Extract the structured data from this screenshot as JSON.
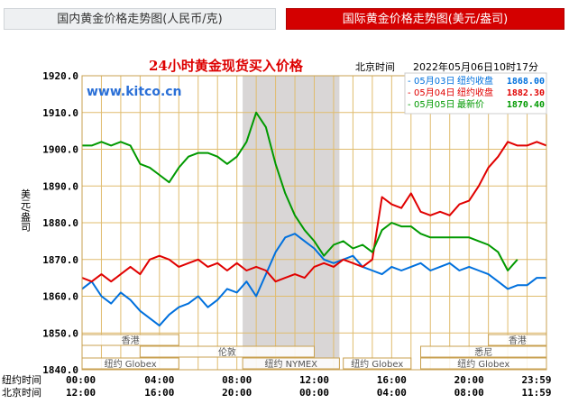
{
  "tabs": {
    "domestic": "国内黄金价格走势图(人民币/克)",
    "international": "国际黄金价格走势图(美元/盎司)"
  },
  "colors": {
    "day1": "#0070dd",
    "day2": "#e00000",
    "day3": "#009900",
    "title": "#dd0000"
  },
  "chart_data": {
    "type": "line",
    "title": "24小时黄金现货买入价格",
    "timezone_label": "北京时间",
    "timestamp": "2022年05月06日10时17分",
    "watermark": "www.kitco.cn",
    "ylabel": "美元/盎司",
    "ylim": [
      1840,
      1920
    ],
    "yticks": [
      "1840.0",
      "1850.0",
      "1860.0",
      "1870.0",
      "1880.0",
      "1890.0",
      "1900.0",
      "1910.0",
      "1920.0"
    ],
    "xlim": [
      0,
      24
    ],
    "x_axis_rows": [
      {
        "label": "纽约时间",
        "ticks": [
          "00:00",
          "04:00",
          "08:00",
          "12:00",
          "16:00",
          "20:00",
          "23:59"
        ]
      },
      {
        "label": "北京时间",
        "ticks": [
          "12:00",
          "16:00",
          "20:00",
          "00:00",
          "04:00",
          "08:00",
          "11:59"
        ]
      }
    ],
    "x_tick_positions": [
      0,
      4,
      8,
      12,
      16,
      20,
      23.98
    ],
    "shaded_range": [
      8.3,
      13.3
    ],
    "market_bands": [
      {
        "name": "香港",
        "row": 0,
        "start": 0,
        "end": 5
      },
      {
        "name": "伦敦",
        "row": 1,
        "start": 3,
        "end": 12
      },
      {
        "name": "纽约 NYMEX",
        "row": 2,
        "start": 8.3,
        "end": 13.3
      },
      {
        "name": "纽约 Globex",
        "row": 2,
        "start": 0,
        "end": 5
      },
      {
        "name": "纽约 Globex",
        "row": 2,
        "start": 13.5,
        "end": 17
      },
      {
        "name": "悉尼",
        "row": 1,
        "start": 17.5,
        "end": 24
      },
      {
        "name": "香港",
        "row": 0,
        "start": 21,
        "end": 24
      },
      {
        "name": "纽约 Globex",
        "row": 2,
        "start": 17.5,
        "end": 24
      }
    ],
    "legend_position": "top-right",
    "series": [
      {
        "name": "05月03日",
        "desc": "纽约收盘",
        "value": "1868.00",
        "color": "#0070dd",
        "x": [
          0,
          0.5,
          1,
          1.5,
          2,
          2.5,
          3,
          3.5,
          4,
          4.5,
          5,
          5.5,
          6,
          6.5,
          7,
          7.5,
          8,
          8.5,
          9,
          9.5,
          10,
          10.5,
          11,
          11.5,
          12,
          12.5,
          13,
          13.5,
          14,
          14.5,
          15,
          15.5,
          16,
          16.5,
          17,
          17.5,
          18,
          18.5,
          19,
          19.5,
          20,
          20.5,
          21,
          21.5,
          22,
          22.5,
          23,
          23.5,
          24
        ],
        "y": [
          1862,
          1864,
          1860,
          1858,
          1861,
          1859,
          1856,
          1854,
          1852,
          1855,
          1857,
          1858,
          1860,
          1857,
          1859,
          1862,
          1861,
          1864,
          1860,
          1866,
          1872,
          1876,
          1877,
          1875,
          1873,
          1870,
          1869,
          1870,
          1871,
          1868,
          1867,
          1866,
          1868,
          1867,
          1868,
          1869,
          1867,
          1868,
          1869,
          1867,
          1868,
          1867,
          1866,
          1864,
          1862,
          1863,
          1863,
          1865,
          1865
        ]
      },
      {
        "name": "05月04日",
        "desc": "纽约收盘",
        "value": "1882.30",
        "color": "#e00000",
        "x": [
          0,
          0.5,
          1,
          1.5,
          2,
          2.5,
          3,
          3.5,
          4,
          4.5,
          5,
          5.5,
          6,
          6.5,
          7,
          7.5,
          8,
          8.5,
          9,
          9.5,
          10,
          10.5,
          11,
          11.5,
          12,
          12.5,
          13,
          13.5,
          14,
          14.5,
          15,
          15.5,
          16,
          16.5,
          17,
          17.5,
          18,
          18.5,
          19,
          19.5,
          20,
          20.5,
          21,
          21.5,
          22,
          22.5,
          23,
          23.5,
          24
        ],
        "y": [
          1865,
          1864,
          1866,
          1864,
          1866,
          1868,
          1866,
          1870,
          1871,
          1870,
          1868,
          1869,
          1870,
          1868,
          1869,
          1867,
          1869,
          1867,
          1868,
          1867,
          1864,
          1865,
          1866,
          1865,
          1868,
          1869,
          1868,
          1870,
          1869,
          1868,
          1870,
          1887,
          1885,
          1884,
          1888,
          1883,
          1882,
          1883,
          1882,
          1885,
          1886,
          1890,
          1895,
          1898,
          1902,
          1901,
          1901,
          1902,
          1901
        ]
      },
      {
        "name": "05月05日",
        "desc": "最新价",
        "value": "1870.40",
        "color": "#009900",
        "x": [
          0,
          0.5,
          1,
          1.5,
          2,
          2.5,
          3,
          3.5,
          4,
          4.5,
          5,
          5.5,
          6,
          6.5,
          7,
          7.5,
          8,
          8.5,
          9,
          9.5,
          10,
          10.5,
          11,
          11.5,
          12,
          12.5,
          13,
          13.5,
          14,
          14.5,
          15,
          15.5,
          16,
          16.5,
          17,
          17.5,
          18,
          18.5,
          19,
          19.5,
          20,
          20.5,
          21,
          21.5,
          22,
          22.5
        ],
        "y": [
          1901,
          1901,
          1902,
          1901,
          1902,
          1901,
          1896,
          1895,
          1893,
          1891,
          1895,
          1898,
          1899,
          1899,
          1898,
          1896,
          1898,
          1902,
          1910,
          1906,
          1896,
          1888,
          1882,
          1878,
          1875,
          1871,
          1874,
          1875,
          1873,
          1874,
          1872,
          1878,
          1880,
          1879,
          1879,
          1877,
          1876,
          1876,
          1876,
          1876,
          1876,
          1875,
          1874,
          1872,
          1867,
          1870
        ]
      }
    ]
  }
}
